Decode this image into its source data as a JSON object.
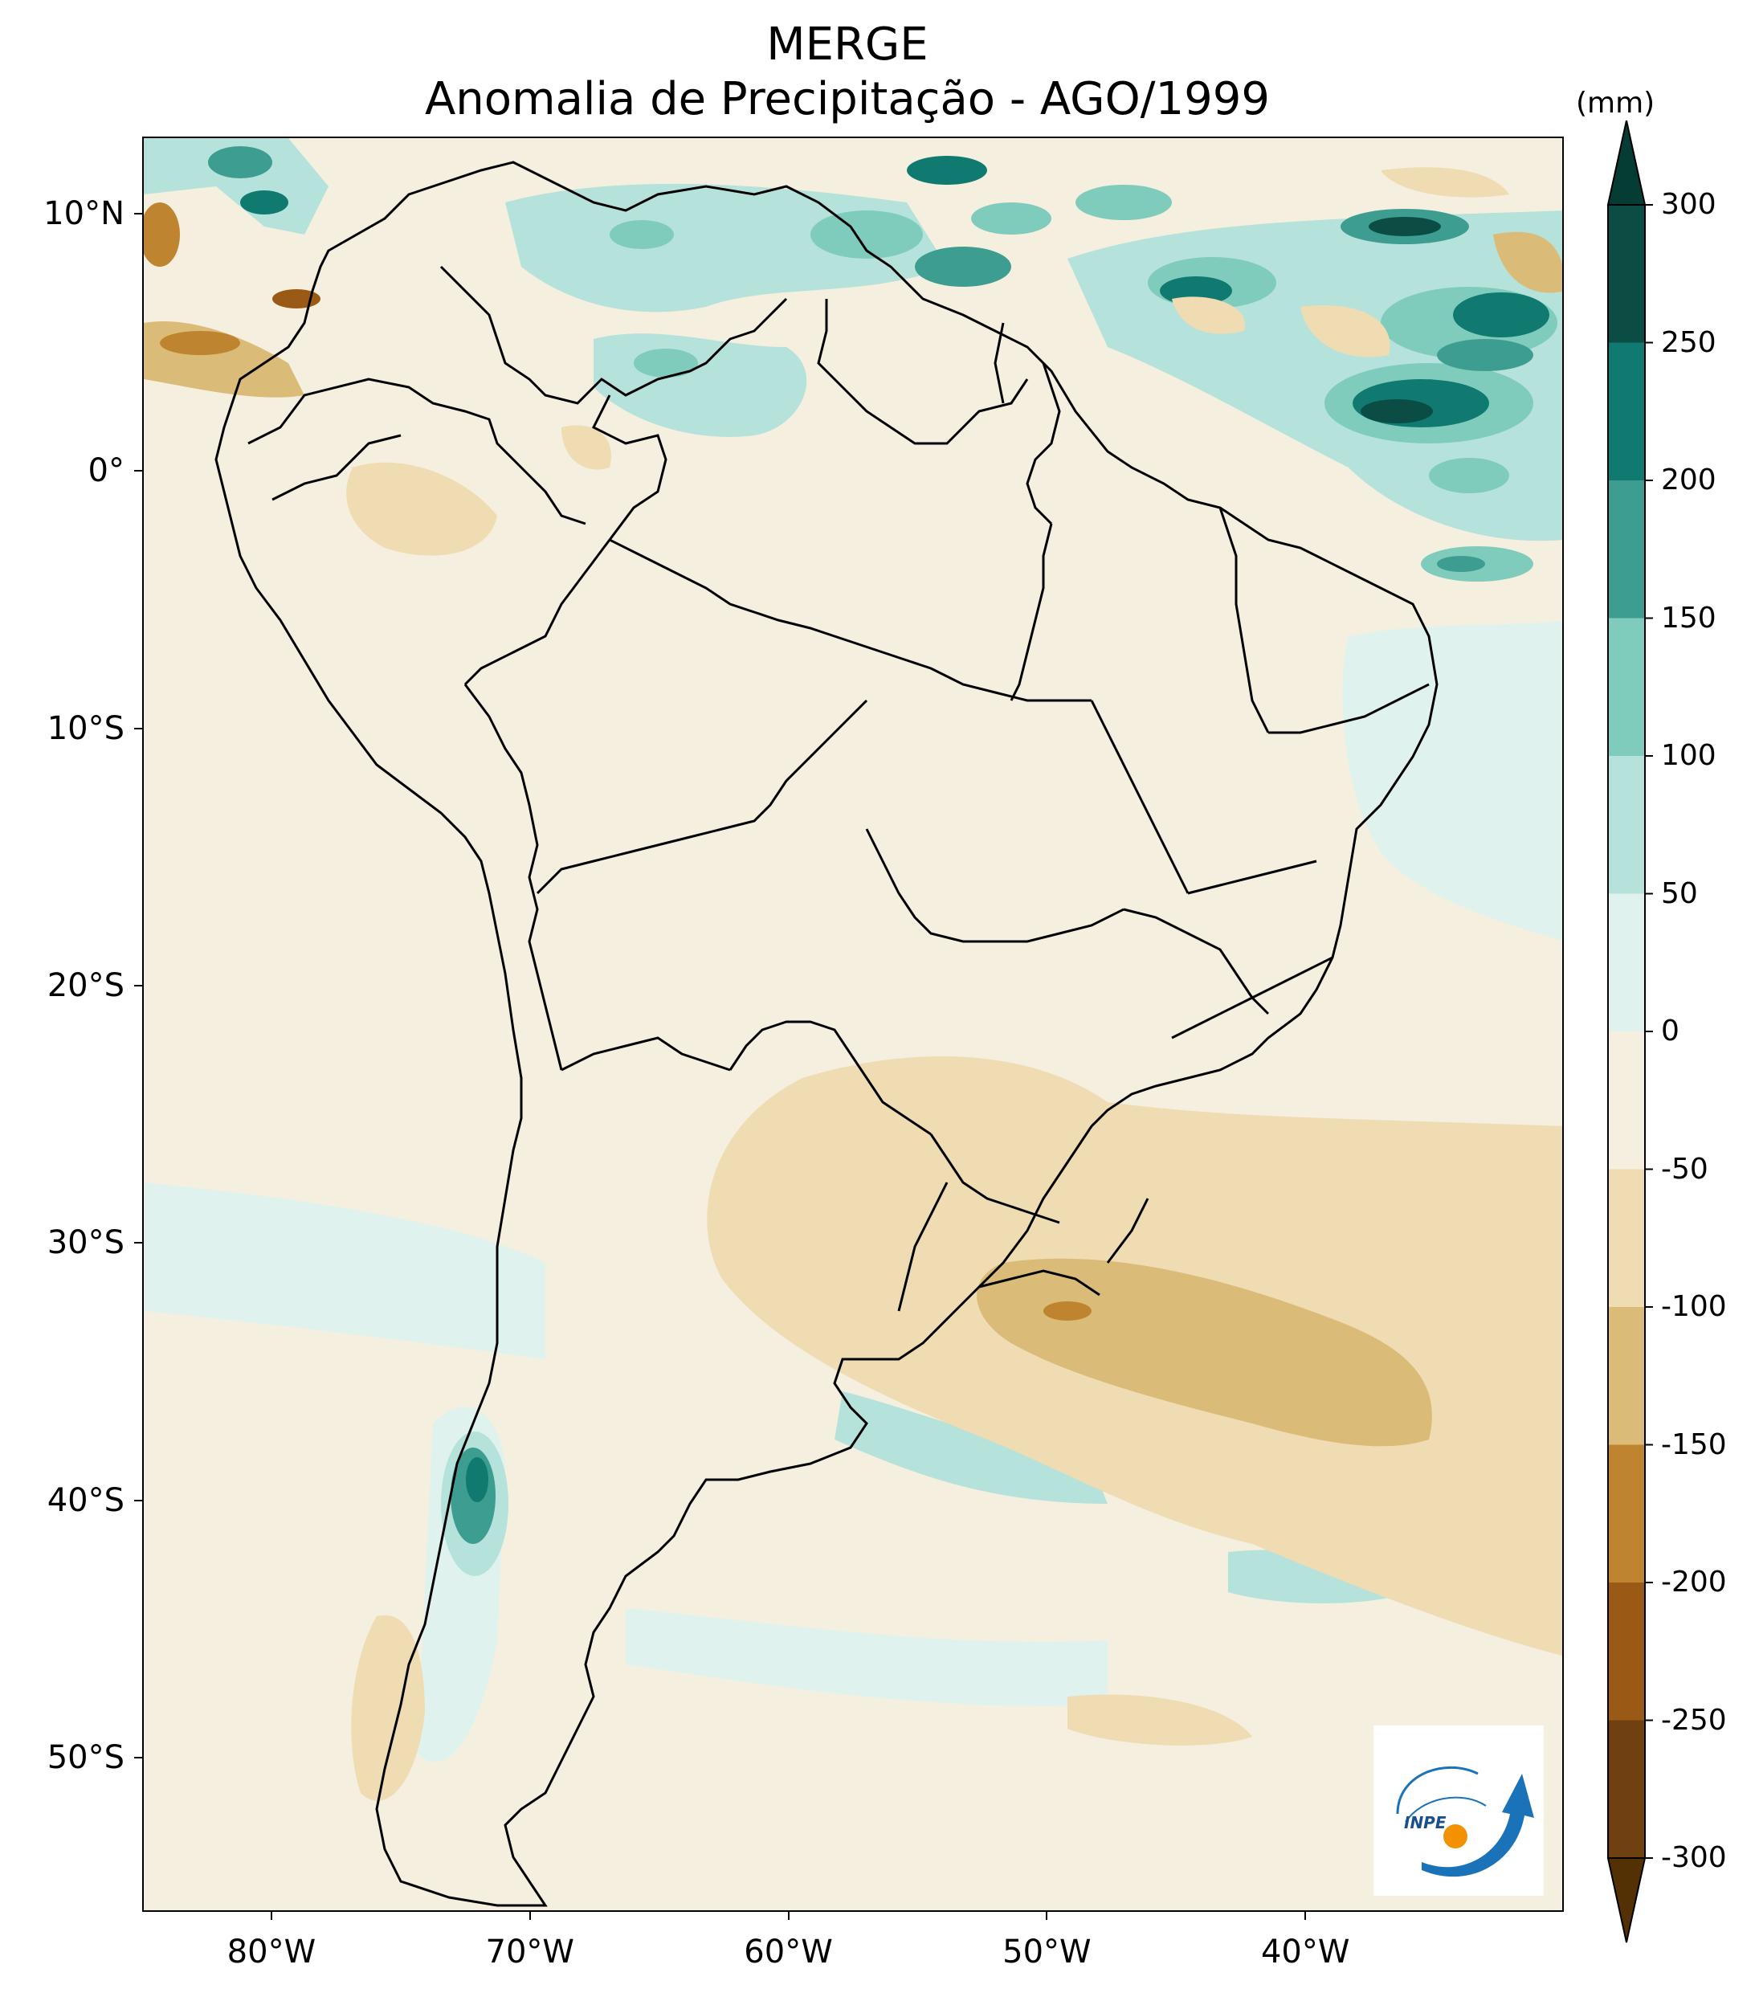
{
  "title": {
    "line1": "MERGE",
    "line2": "Anomalia de Precipitação - AGO/1999"
  },
  "map": {
    "extent": {
      "lon_min": -85,
      "lon_max": -30,
      "lat_min": -56,
      "lat_max": 13
    },
    "y_ticks": [
      {
        "lat": 10,
        "label": "10°N"
      },
      {
        "lat": 0,
        "label": "0°"
      },
      {
        "lat": -10,
        "label": "10°S"
      },
      {
        "lat": -20,
        "label": "20°S"
      },
      {
        "lat": -30,
        "label": "30°S"
      },
      {
        "lat": -40,
        "label": "40°S"
      },
      {
        "lat": -50,
        "label": "50°S"
      }
    ],
    "x_ticks": [
      {
        "lon": -80,
        "label": "80°W"
      },
      {
        "lon": -70,
        "label": "70°W"
      },
      {
        "lon": -60,
        "label": "60°W"
      },
      {
        "lon": -50,
        "label": "50°W"
      },
      {
        "lon": -40,
        "label": "40°W"
      }
    ],
    "background_color": "#f5efe0",
    "outline_color": "#000000"
  },
  "colorbar": {
    "unit": "(mm)",
    "levels": [
      {
        "value": 300,
        "label": "300"
      },
      {
        "value": 250,
        "label": "250"
      },
      {
        "value": 200,
        "label": "200"
      },
      {
        "value": 150,
        "label": "150"
      },
      {
        "value": 100,
        "label": "100"
      },
      {
        "value": 50,
        "label": "50"
      },
      {
        "value": 0,
        "label": "0"
      },
      {
        "value": -50,
        "label": "-50"
      },
      {
        "value": -100,
        "label": "-100"
      },
      {
        "value": -150,
        "label": "-150"
      },
      {
        "value": -200,
        "label": "-200"
      },
      {
        "value": -250,
        "label": "-250"
      },
      {
        "value": -300,
        "label": "-300"
      }
    ],
    "colors_top_to_bottom": [
      "#0b4d45",
      "#107a70",
      "#3e9d91",
      "#7fcbbc",
      "#b5e2da",
      "#e0f2ee",
      "#f5efe0",
      "#efdcb2",
      "#dbbb78",
      "#bf842f",
      "#9a5a15",
      "#6f4010"
    ],
    "extend_top_color": "#053c33",
    "extend_bottom_color": "#543005"
  },
  "logo": {
    "text": "INPE",
    "name": "INPE"
  }
}
